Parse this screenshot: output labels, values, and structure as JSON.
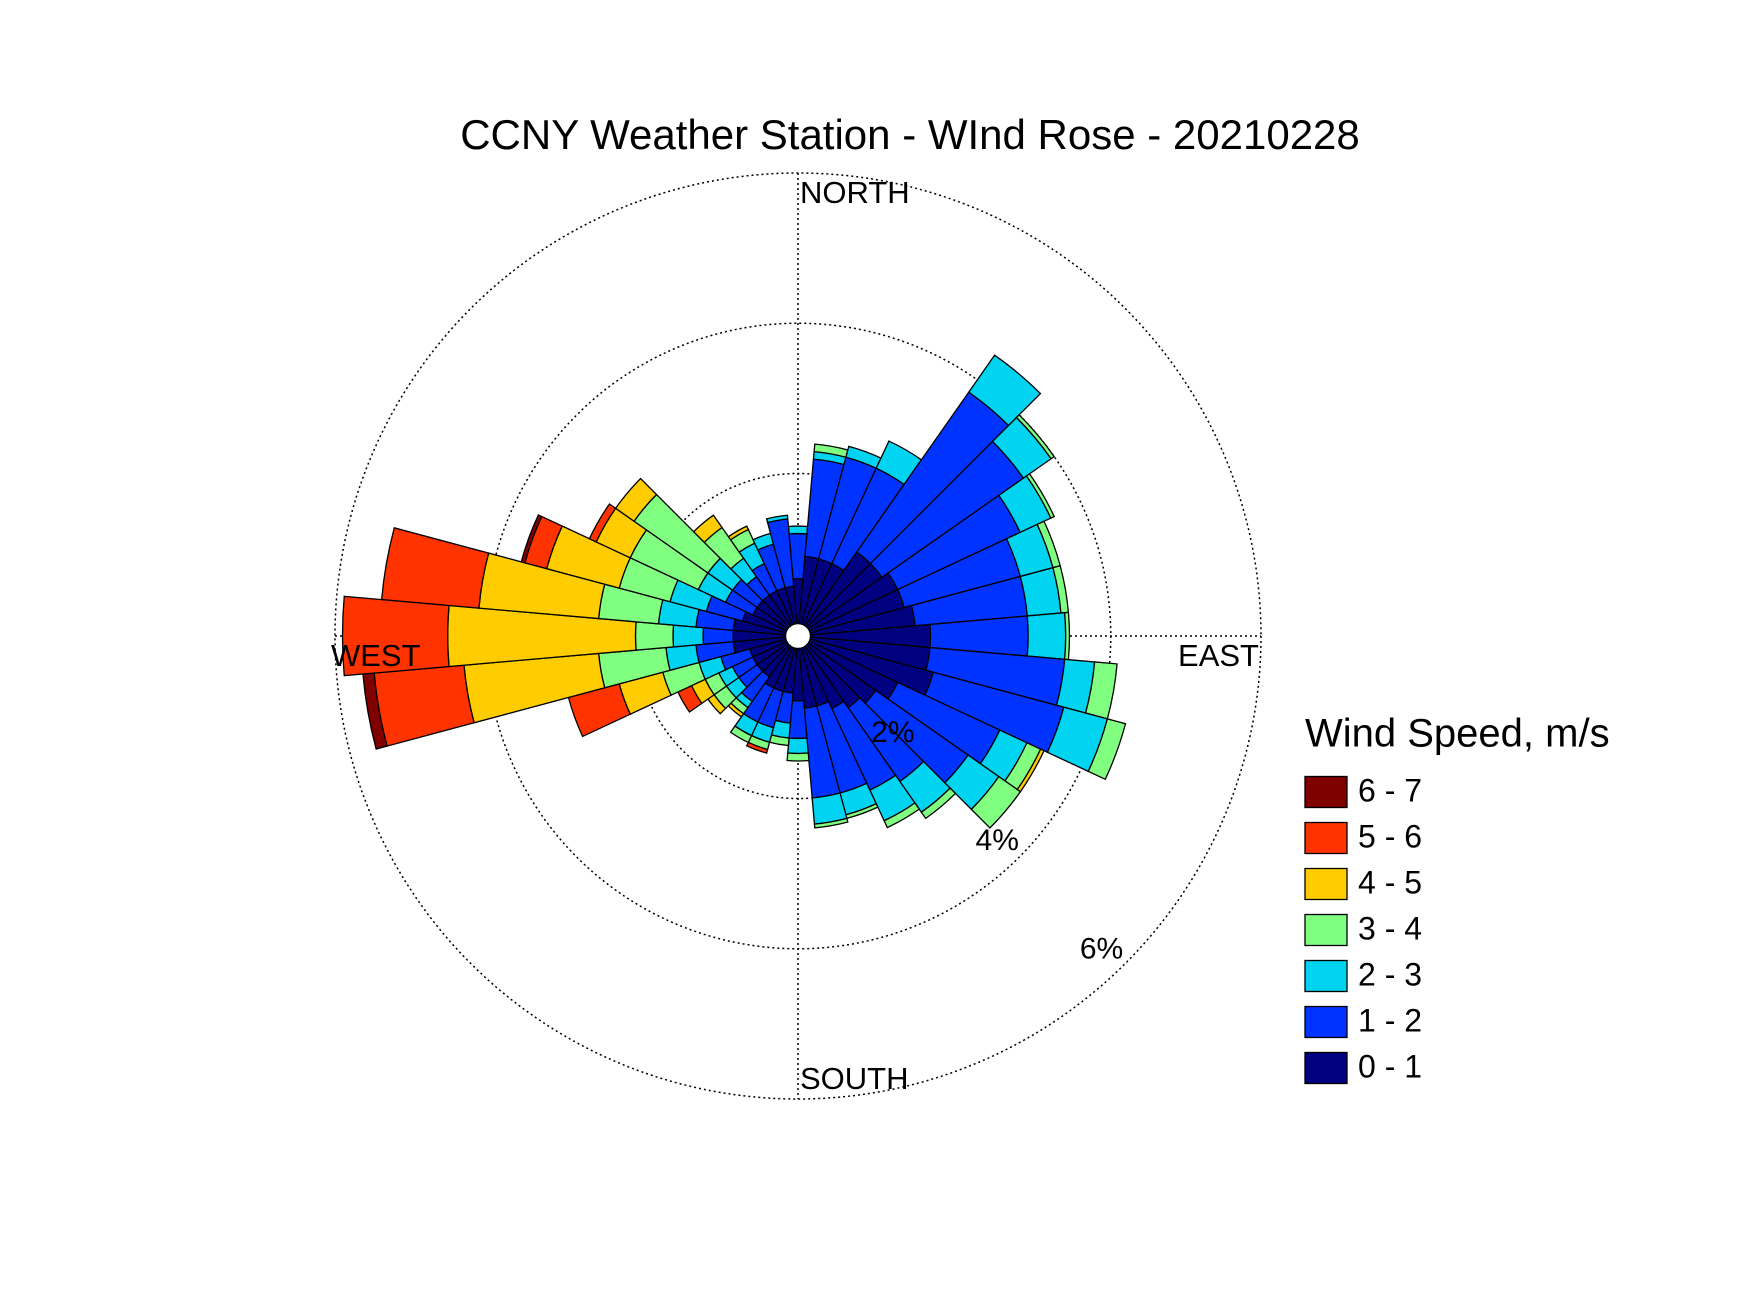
{
  "chart_data": {
    "type": "windrose",
    "title": "CCNY Weather Station - WInd Rose - 20210228",
    "direction_labels": [
      "NORTH",
      "EAST",
      "SOUTH",
      "WEST"
    ],
    "x": [
      0,
      10,
      20,
      30,
      40,
      50,
      60,
      70,
      80,
      90,
      100,
      110,
      120,
      130,
      140,
      150,
      160,
      170,
      180,
      190,
      200,
      210,
      220,
      230,
      240,
      250,
      260,
      270,
      280,
      290,
      300,
      310,
      320,
      330,
      340,
      350
    ],
    "rlim": [
      0,
      6
    ],
    "rticks": [
      {
        "value": 2,
        "label": "2%"
      },
      {
        "value": 4,
        "label": "4%"
      },
      {
        "value": 6,
        "label": "6%"
      }
    ],
    "legend_title": "Wind Speed, m/s",
    "series": [
      {
        "name": "0 - 1",
        "color": "#000080",
        "values": [
          0.6,
          0.9,
          0.9,
          0.9,
          1.2,
          1.2,
          1.3,
          1.3,
          1.4,
          1.6,
          1.6,
          1.7,
          1.3,
          1.1,
          1.0,
          0.9,
          0.8,
          0.8,
          0.7,
          0.6,
          0.6,
          0.6,
          0.5,
          0.5,
          0.5,
          0.5,
          0.7,
          0.7,
          0.7,
          0.6,
          0.5,
          0.5,
          0.5,
          0.5,
          0.5,
          0.5
        ]
      },
      {
        "name": "1 - 2",
        "color": "#0033ff",
        "values": [
          0.6,
          1.3,
          1.4,
          1.4,
          2.6,
          2.3,
          1.8,
          1.6,
          1.5,
          1.3,
          1.8,
          1.8,
          1.5,
          1.5,
          1.2,
          1.2,
          1.2,
          1.2,
          0.5,
          0.4,
          0.5,
          0.5,
          0.4,
          0.3,
          0.3,
          0.4,
          0.5,
          0.4,
          0.5,
          0.5,
          0.4,
          0.4,
          0.3,
          0.4,
          0.6,
          0.9
        ]
      },
      {
        "name": "2 - 3",
        "color": "#00d4f0",
        "values": [
          0.1,
          0.1,
          0.15,
          0.4,
          0.6,
          0.45,
          0.45,
          0.45,
          0.45,
          0.5,
          0.4,
          0.6,
          0.4,
          0.5,
          0.5,
          0.45,
          0.3,
          0.35,
          0.2,
          0.2,
          0.2,
          0.2,
          0.1,
          0.2,
          0.2,
          0.3,
          0.4,
          0.4,
          0.5,
          0.5,
          0.4,
          0.4,
          0.3,
          0.3,
          0.15,
          0.05
        ]
      },
      {
        "name": "3 - 4",
        "color": "#80ff80",
        "values": [
          0,
          0.1,
          0,
          0,
          0,
          0.05,
          0.05,
          0.1,
          0.1,
          0.05,
          0.3,
          0.25,
          0.2,
          0.35,
          0.1,
          0.1,
          0.05,
          0.05,
          0.1,
          0.1,
          0.1,
          0.1,
          0.1,
          0.2,
          0.2,
          0.5,
          0.9,
          0.5,
          0.8,
          0.7,
          1.0,
          1.2,
          0.5,
          0.2,
          0,
          0
        ]
      },
      {
        "name": "4 - 5",
        "color": "#ffcc00",
        "values": [
          0,
          0,
          0,
          0,
          0,
          0,
          0,
          0,
          0,
          0,
          0,
          0,
          0.05,
          0,
          0,
          0,
          0,
          0,
          0,
          0,
          0,
          0,
          0.05,
          0.1,
          0.2,
          0.6,
          1.8,
          2.5,
          1.6,
          1.0,
          0.5,
          0.3,
          0.2,
          0.05,
          0,
          0
        ]
      },
      {
        "name": "5 - 6",
        "color": "#ff3300",
        "values": [
          0,
          0,
          0,
          0,
          0,
          0,
          0,
          0,
          0,
          0,
          0,
          0,
          0,
          0,
          0,
          0,
          0,
          0,
          0,
          0,
          0.05,
          0,
          0,
          0,
          0.2,
          0.7,
          1.2,
          1.4,
          1.3,
          0.3,
          0.1,
          0,
          0,
          0,
          0,
          0
        ]
      },
      {
        "name": "6 - 7",
        "color": "#800000",
        "values": [
          0,
          0,
          0,
          0,
          0,
          0,
          0,
          0,
          0,
          0,
          0,
          0,
          0,
          0,
          0,
          0,
          0,
          0,
          0,
          0,
          0,
          0,
          0,
          0,
          0,
          0,
          0.15,
          0,
          0,
          0.05,
          0,
          0,
          0,
          0,
          0,
          0
        ]
      }
    ]
  }
}
